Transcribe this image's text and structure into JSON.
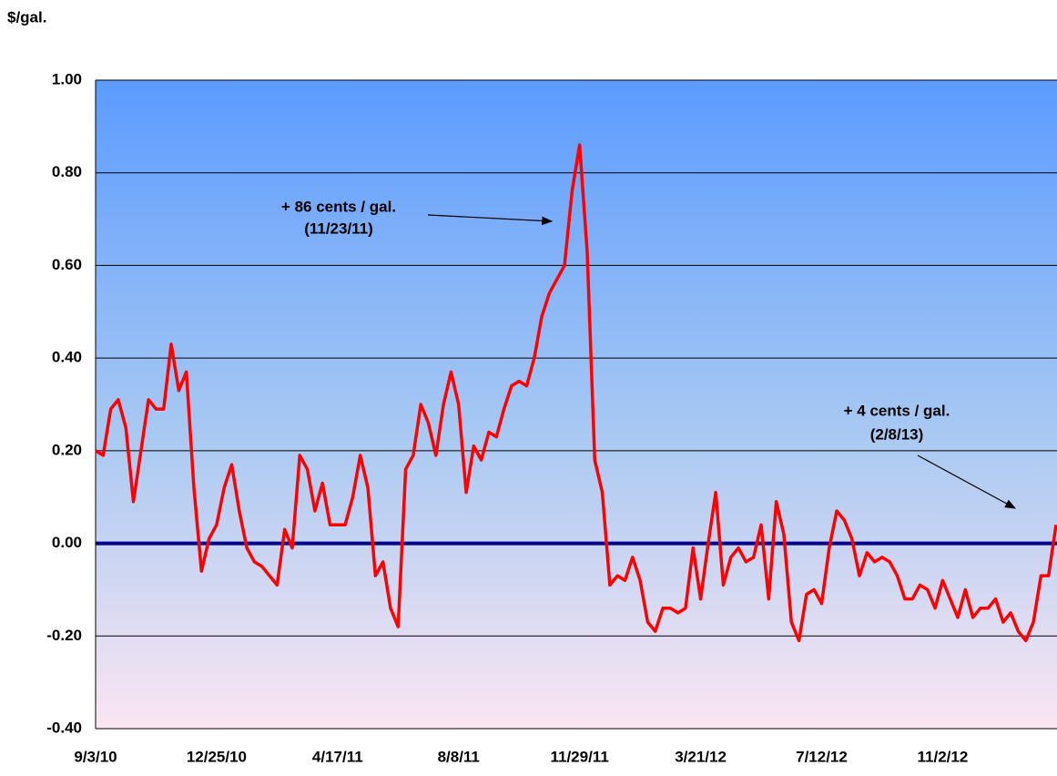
{
  "chart_data": {
    "type": "line",
    "y_label": "$/gal.",
    "annotations": [
      "+ 86 cents / gal.",
      "(11/23/11)",
      "+ 4 cents / gal.",
      "(2/8/13)"
    ],
    "categories": [
      "9/3/10",
      null,
      null,
      null,
      null,
      null,
      null,
      null,
      null,
      null,
      null,
      null,
      null,
      null,
      null,
      null,
      "12/25/10",
      null,
      null,
      null,
      null,
      null,
      null,
      null,
      null,
      null,
      null,
      null,
      null,
      null,
      null,
      null,
      "4/17/11",
      null,
      null,
      null,
      null,
      null,
      null,
      null,
      null,
      null,
      null,
      null,
      null,
      null,
      null,
      null,
      "8/8/11",
      null,
      null,
      null,
      null,
      null,
      null,
      null,
      null,
      null,
      null,
      null,
      null,
      null,
      null,
      null,
      "11/29/11",
      null,
      null,
      null,
      null,
      null,
      null,
      null,
      null,
      null,
      null,
      null,
      null,
      null,
      null,
      null,
      "3/21/12",
      null,
      null,
      null,
      null,
      null,
      null,
      null,
      null,
      null,
      null,
      null,
      null,
      null,
      null,
      null,
      "7/12/12",
      null,
      null,
      null,
      null,
      null,
      null,
      null,
      null,
      null,
      null,
      null,
      null,
      null,
      null,
      null,
      "11/2/12",
      null,
      null,
      null,
      null,
      null,
      null,
      null,
      null,
      null,
      null,
      null,
      null,
      null,
      null,
      null
    ],
    "values": [
      0.2,
      0.19,
      0.29,
      0.31,
      0.25,
      0.09,
      0.2,
      0.31,
      0.29,
      0.29,
      0.43,
      0.33,
      0.37,
      0.12,
      -0.06,
      0.01,
      0.04,
      0.12,
      0.17,
      0.07,
      -0.01,
      -0.04,
      -0.05,
      -0.07,
      -0.09,
      0.03,
      -0.01,
      0.19,
      0.16,
      0.07,
      0.13,
      0.04,
      0.04,
      0.04,
      0.1,
      0.19,
      0.12,
      -0.07,
      -0.04,
      -0.14,
      -0.18,
      0.16,
      0.19,
      0.3,
      0.26,
      0.19,
      0.3,
      0.37,
      0.3,
      0.11,
      0.21,
      0.18,
      0.24,
      0.23,
      0.29,
      0.34,
      0.35,
      0.34,
      0.4,
      0.49,
      0.54,
      0.57,
      0.6,
      0.76,
      0.86,
      0.63,
      0.18,
      0.11,
      -0.09,
      -0.07,
      -0.08,
      -0.03,
      -0.08,
      -0.17,
      -0.19,
      -0.14,
      -0.14,
      -0.15,
      -0.14,
      -0.01,
      -0.12,
      0.0,
      0.11,
      -0.09,
      -0.03,
      -0.01,
      -0.04,
      -0.03,
      0.04,
      -0.12,
      0.09,
      0.02,
      -0.17,
      -0.21,
      -0.11,
      -0.1,
      -0.13,
      -0.01,
      0.07,
      0.05,
      0.01,
      -0.07,
      -0.02,
      -0.04,
      -0.03,
      -0.04,
      -0.07,
      -0.12,
      -0.12,
      -0.09,
      -0.1,
      -0.14,
      -0.08,
      -0.12,
      -0.16,
      -0.1,
      -0.16,
      -0.14,
      -0.14,
      -0.12,
      -0.17,
      -0.15,
      -0.19,
      -0.21,
      -0.17,
      -0.07,
      -0.07,
      0.04
    ],
    "color": "#ff0000",
    "ylim": [
      -0.4,
      1.0
    ],
    "yticks": [
      {
        "value": -0.4,
        "label": "-0.40"
      },
      {
        "value": -0.2,
        "label": "-0.20"
      },
      {
        "value": 0,
        "label": "0.00"
      },
      {
        "value": 0.2,
        "label": "0.20"
      },
      {
        "value": 0.4,
        "label": "0.40"
      },
      {
        "value": 0.6,
        "label": "0.60"
      },
      {
        "value": 0.8,
        "label": "0.80"
      },
      {
        "value": 1.0,
        "label": "1.00"
      }
    ],
    "grid": true
  }
}
